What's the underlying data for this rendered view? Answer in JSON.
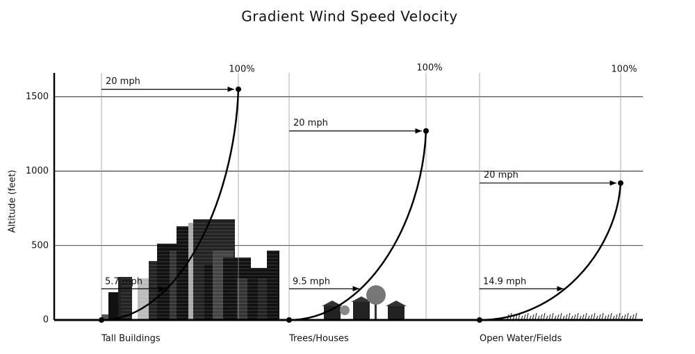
{
  "chart_data": {
    "type": "wind-profile",
    "title": "Gradient Wind Speed Velocity",
    "y_label": "Altitude (feet)",
    "ylim": [
      0,
      1660
    ],
    "yticks": [
      0,
      500,
      1000,
      1500
    ],
    "grid": true,
    "reference_height": 210,
    "panels": [
      {
        "name": "Tall Buildings",
        "gradient_height": 1550,
        "top_label": "100%",
        "top_speed": "20 mph",
        "low_speed": "5.7 mph",
        "scenery": "city"
      },
      {
        "name": "Trees/Houses",
        "gradient_height": 1270,
        "top_label": "100%",
        "top_speed": "20 mph",
        "low_speed": "9.5 mph",
        "scenery": "trees"
      },
      {
        "name": "Open Water/Fields",
        "gradient_height": 920,
        "top_label": "100%",
        "top_speed": "20 mph",
        "low_speed": "14.9 mph",
        "scenery": "grass"
      }
    ]
  }
}
